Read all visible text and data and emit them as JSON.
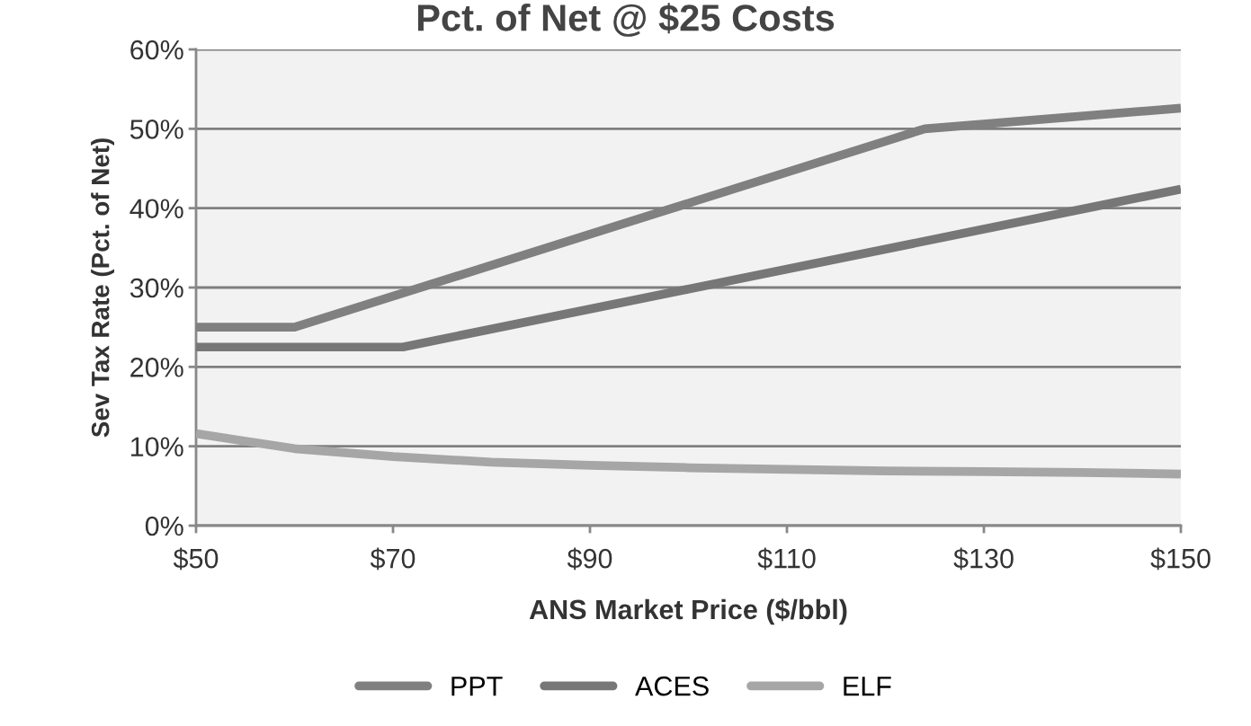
{
  "chart_data": {
    "type": "line",
    "title": "Pct. of Net @ $25 Costs",
    "xlabel": "ANS Market Price ($/bbl)",
    "ylabel": "Sev Tax Rate (Pct. of Net)",
    "series": [
      {
        "name": "PPT",
        "color": "#808080",
        "x": [
          50,
          60,
          124,
          150
        ],
        "values": [
          25,
          25,
          50,
          52.6
        ]
      },
      {
        "name": "ACES",
        "color": "#777777",
        "x": [
          50,
          71,
          100,
          150
        ],
        "values": [
          22.5,
          22.5,
          29.8,
          42.4
        ]
      },
      {
        "name": "ELF",
        "color": "#a6a6a6",
        "x": [
          50,
          60,
          70,
          80,
          90,
          100,
          110,
          120,
          130,
          140,
          150
        ],
        "values": [
          11.6,
          9.7,
          8.7,
          8.0,
          7.6,
          7.3,
          7.1,
          6.9,
          6.8,
          6.7,
          6.5
        ]
      }
    ],
    "xlim": [
      50,
      150
    ],
    "xticks": [
      {
        "value": 50,
        "label": "$50"
      },
      {
        "value": 70,
        "label": "$70"
      },
      {
        "value": 90,
        "label": "$90"
      },
      {
        "value": 110,
        "label": "$110"
      },
      {
        "value": 130,
        "label": "$130"
      },
      {
        "value": 150,
        "label": "$150"
      }
    ],
    "ylim": [
      0,
      60
    ],
    "yticks": [
      {
        "value": 0,
        "label": "0%"
      },
      {
        "value": 10,
        "label": "10%"
      },
      {
        "value": 20,
        "label": "20%"
      },
      {
        "value": 30,
        "label": "30%"
      },
      {
        "value": 40,
        "label": "40%"
      },
      {
        "value": 50,
        "label": "50%"
      },
      {
        "value": 60,
        "label": "60%"
      }
    ],
    "grid": "y",
    "legend": "bottom",
    "marker": "none",
    "line_style": "solid"
  }
}
